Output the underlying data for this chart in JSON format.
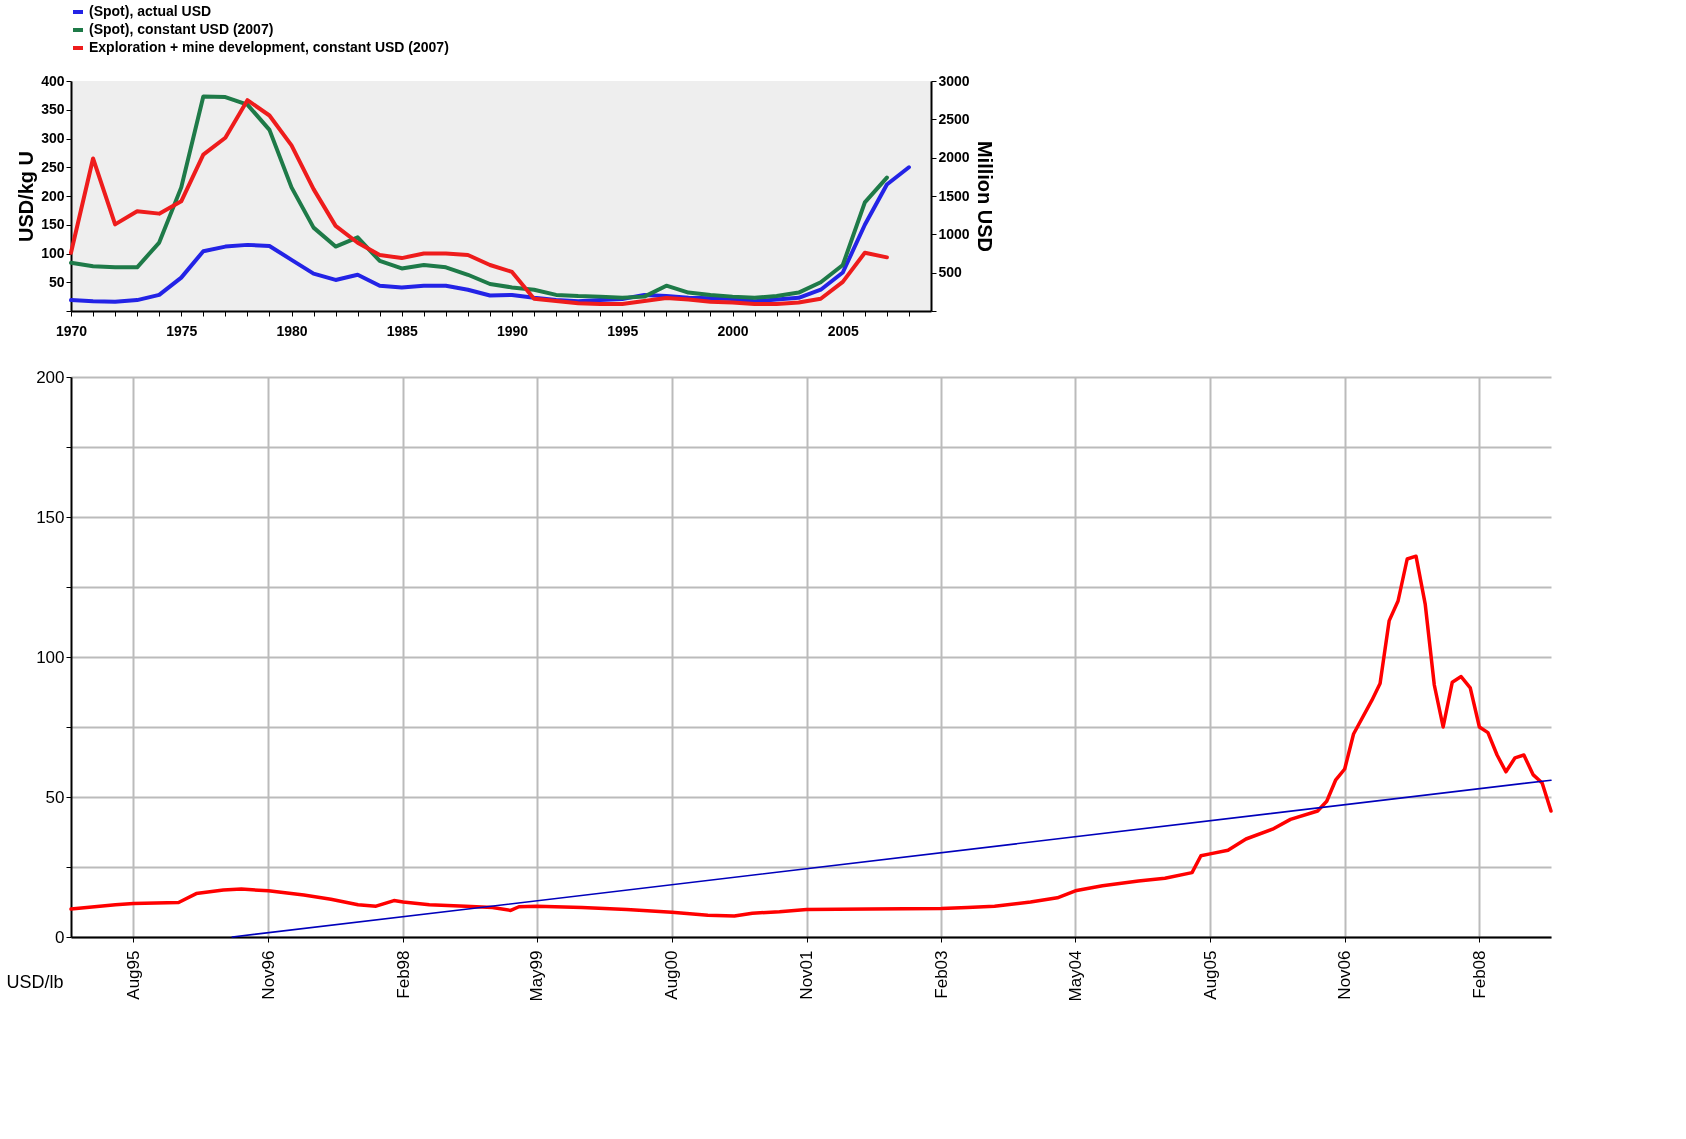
{
  "chart_data": [
    {
      "type": "line",
      "ylabel": "USD/kg U",
      "y2label": "Million USD",
      "legend": "top",
      "grid": false,
      "xlim": [
        1970,
        2009
      ],
      "xticks": [
        1970,
        {
          "value": 1971,
          "label": null
        },
        {
          "value": 1972,
          "label": null
        },
        {
          "value": 1973,
          "label": null
        },
        {
          "value": 1974,
          "label": null
        },
        1975,
        {
          "value": 1976,
          "label": null
        },
        {
          "value": 1977,
          "label": null
        },
        {
          "value": 1978,
          "label": null
        },
        {
          "value": 1979,
          "label": null
        },
        1980,
        {
          "value": 1981,
          "label": null
        },
        {
          "value": 1982,
          "label": null
        },
        {
          "value": 1983,
          "label": null
        },
        {
          "value": 1984,
          "label": null
        },
        1985,
        {
          "value": 1986,
          "label": null
        },
        {
          "value": 1987,
          "label": null
        },
        {
          "value": 1988,
          "label": null
        },
        {
          "value": 1989,
          "label": null
        },
        1990,
        {
          "value": 1991,
          "label": null
        },
        {
          "value": 1992,
          "label": null
        },
        {
          "value": 1993,
          "label": null
        },
        {
          "value": 1994,
          "label": null
        },
        1995,
        {
          "value": 1996,
          "label": null
        },
        {
          "value": 1997,
          "label": null
        },
        {
          "value": 1998,
          "label": null
        },
        {
          "value": 1999,
          "label": null
        },
        2000,
        {
          "value": 2001,
          "label": null
        },
        {
          "value": 2002,
          "label": null
        },
        {
          "value": 2003,
          "label": null
        },
        {
          "value": 2004,
          "label": null
        },
        2005,
        {
          "value": 2006,
          "label": null
        },
        {
          "value": 2007,
          "label": null
        },
        {
          "value": 2008,
          "label": null
        }
      ],
      "ylim": [
        0,
        400
      ],
      "yticks": [
        {
          "value": 0,
          "label": null
        },
        50,
        100,
        150,
        200,
        250,
        300,
        350,
        400
      ],
      "y2lim": [
        0,
        3000
      ],
      "y2ticks": [
        {
          "value": 0,
          "label": null
        },
        500,
        1000,
        1500,
        2000,
        2500,
        3000
      ],
      "series": [
        {
          "name": "(Spot), actual USD",
          "color": "#2323e6",
          "x": [
            1970,
            1971,
            1972,
            1973,
            1974,
            1975,
            1976,
            1977,
            1978,
            1979,
            1980,
            1981,
            1982,
            1983,
            1984,
            1985,
            1986,
            1987,
            1988,
            1989,
            1990,
            1991,
            1992,
            1993,
            1994,
            1995,
            1996,
            1997,
            1998,
            1999,
            2000,
            2001,
            2002,
            2003,
            2004,
            2005,
            2006,
            2007,
            2008
          ],
          "values": [
            19,
            17,
            16,
            19,
            28,
            58,
            104,
            112,
            115,
            113,
            89,
            65,
            54,
            63,
            44,
            41,
            44,
            44,
            37,
            27,
            28,
            23,
            19,
            17,
            19,
            21,
            28,
            26,
            23,
            22,
            21,
            17,
            20,
            23,
            37,
            67,
            150,
            220,
            250
          ]
        },
        {
          "name": "(Spot), constant USD (2007)",
          "color": "#1e7a48",
          "x": [
            1970,
            1971,
            1972,
            1973,
            1974,
            1975,
            1976,
            1977,
            1978,
            1979,
            1980,
            1981,
            1982,
            1983,
            1984,
            1985,
            1986,
            1987,
            1988,
            1989,
            1990,
            1991,
            1992,
            1993,
            1994,
            1995,
            1996,
            1997,
            1998,
            1999,
            2000,
            2001,
            2002,
            2003,
            2004,
            2005,
            2006,
            2007
          ],
          "values": [
            84,
            78,
            76,
            76,
            119,
            215,
            373,
            372,
            359,
            315,
            215,
            145,
            112,
            128,
            87,
            74,
            80,
            76,
            63,
            47,
            41,
            37,
            28,
            26,
            25,
            23,
            25,
            44,
            32,
            28,
            25,
            23,
            26,
            32,
            50,
            80,
            189,
            232
          ]
        },
        {
          "name": "Exploration + mine development, constant USD (2007)",
          "color": "#ee1c1c",
          "axis": "y2",
          "x": [
            1970,
            1971,
            1972,
            1973,
            1974,
            1975,
            1976,
            1977,
            1978,
            1979,
            1980,
            1981,
            1982,
            1983,
            1984,
            1985,
            1986,
            1987,
            1988,
            1989,
            1990,
            1991,
            1992,
            1993,
            1994,
            1995,
            1996,
            1997,
            1998,
            1999,
            2000,
            2001,
            2002,
            2003,
            2004,
            2005,
            2006,
            2007
          ],
          "values": [
            760,
            1990,
            1130,
            1300,
            1270,
            1430,
            2040,
            2260,
            2750,
            2550,
            2160,
            1590,
            1110,
            890,
            730,
            690,
            750,
            750,
            730,
            600,
            510,
            160,
            130,
            100,
            90,
            90,
            130,
            170,
            150,
            120,
            110,
            90,
            90,
            110,
            160,
            380,
            760,
            700
          ]
        }
      ]
    },
    {
      "type": "line",
      "ylabel": "USD/lb",
      "grid": true,
      "legend": false,
      "xlim": [
        "1995-01",
        "2008-10"
      ],
      "xticks": [
        {
          "value": "1995-08",
          "label": "Aug95"
        },
        {
          "value": "1996-11",
          "label": "Nov96"
        },
        {
          "value": "1998-02",
          "label": "Feb98"
        },
        {
          "value": "1999-05",
          "label": "May99"
        },
        {
          "value": "2000-08",
          "label": "Aug00"
        },
        {
          "value": "2001-11",
          "label": "Nov01"
        },
        {
          "value": "2003-02",
          "label": "Feb03"
        },
        {
          "value": "2004-05",
          "label": "May04"
        },
        {
          "value": "2005-08",
          "label": "Aug05"
        },
        {
          "value": "2006-11",
          "label": "Nov06"
        },
        {
          "value": "2008-02",
          "label": "Feb08"
        }
      ],
      "ylim": [
        0,
        200
      ],
      "yticks": [
        0,
        {
          "value": 25,
          "label": null
        },
        50,
        {
          "value": 75,
          "label": null
        },
        100,
        {
          "value": 125,
          "label": null
        },
        150,
        {
          "value": 175,
          "label": null
        },
        200
      ],
      "series": [
        {
          "color": "#ff0000",
          "x": [
            "1995-01",
            "1995-06",
            "1995-08",
            "1996-01",
            "1996-03",
            "1996-06",
            "1996-08",
            "1996-11",
            "1997-03",
            "1997-06",
            "1997-09",
            "1997-11",
            "1998-01",
            "1998-02",
            "1998-05",
            "1998-09",
            "1998-12",
            "1999-02",
            "1999-03",
            "1999-05",
            "1999-10",
            "2000-03",
            "2000-08",
            "2000-12",
            "2001-03",
            "2001-05",
            "2001-08",
            "2001-11",
            "2002-06",
            "2003-02",
            "2003-05",
            "2003-08",
            "2003-12",
            "2004-03",
            "2004-05",
            "2004-08",
            "2004-12",
            "2005-03",
            "2005-06",
            "2005-07",
            "2005-08",
            "2005-10",
            "2005-12",
            "2006-03",
            "2006-05",
            "2006-08",
            "2006-09",
            "2006-10",
            "2006-11",
            "2006-12",
            "2007-02",
            "2007-03",
            "2007-04",
            "2007-05",
            "2007-06",
            "2007-07",
            "2007-08",
            "2007-09",
            "2007-10",
            "2007-11",
            "2007-12",
            "2008-01",
            "2008-02",
            "2008-03",
            "2008-04",
            "2008-05",
            "2008-06",
            "2008-07",
            "2008-08",
            "2008-09",
            "2008-10"
          ],
          "values": [
            10,
            11.5,
            12,
            12.3,
            15.5,
            16.8,
            17.1,
            16.5,
            15,
            13.5,
            11.5,
            11,
            13,
            12.5,
            11.5,
            11,
            10.5,
            9.5,
            10.8,
            11,
            10.5,
            9.8,
            8.8,
            7.8,
            7.5,
            8.5,
            9,
            9.8,
            10,
            10.2,
            10.5,
            11,
            12.5,
            14,
            16.5,
            18.3,
            20,
            21,
            23,
            29,
            29.7,
            31,
            35,
            38.5,
            42,
            45,
            48.5,
            56,
            60,
            72.5,
            84.5,
            90.5,
            113,
            120,
            135,
            136,
            119,
            90,
            75,
            91,
            93,
            89,
            75,
            73,
            65,
            59,
            64,
            65,
            58,
            55,
            45
          ]
        },
        {
          "color": "#0000bb",
          "x": [
            "1996-07",
            "2008-10"
          ],
          "values": [
            0,
            56
          ]
        }
      ]
    }
  ]
}
